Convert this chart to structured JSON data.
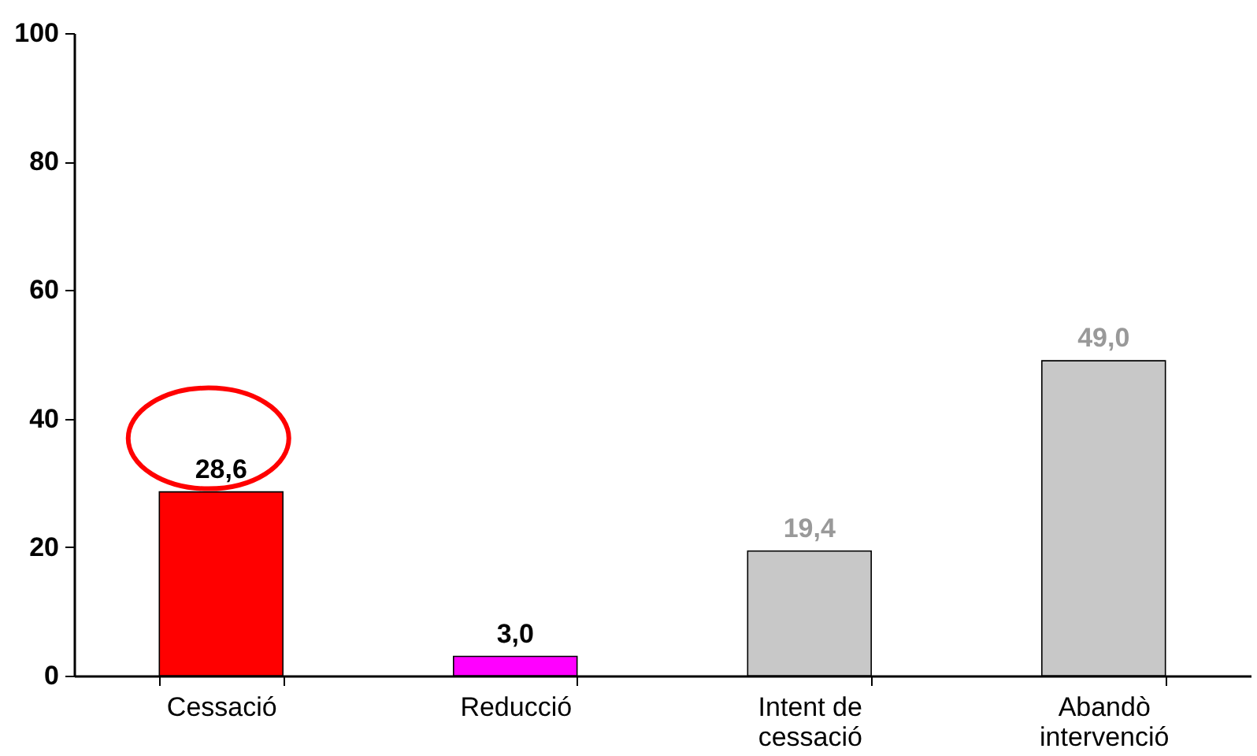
{
  "chart_data": {
    "type": "bar",
    "categories": [
      "Cessació",
      "Reducció",
      "Intent de cessació",
      "Abandò intervenció"
    ],
    "values": [
      28.6,
      3.0,
      19.4,
      49.0
    ],
    "colors": [
      "#ff0000",
      "#ff00ff",
      "#c8c8c8",
      "#c8c8c8"
    ],
    "value_labels": [
      "28,6",
      "3,0",
      "19,4",
      "49,0"
    ],
    "ylim": [
      0,
      100
    ],
    "yticks": [
      0,
      20,
      40,
      60,
      80,
      100
    ],
    "grid": false
  }
}
